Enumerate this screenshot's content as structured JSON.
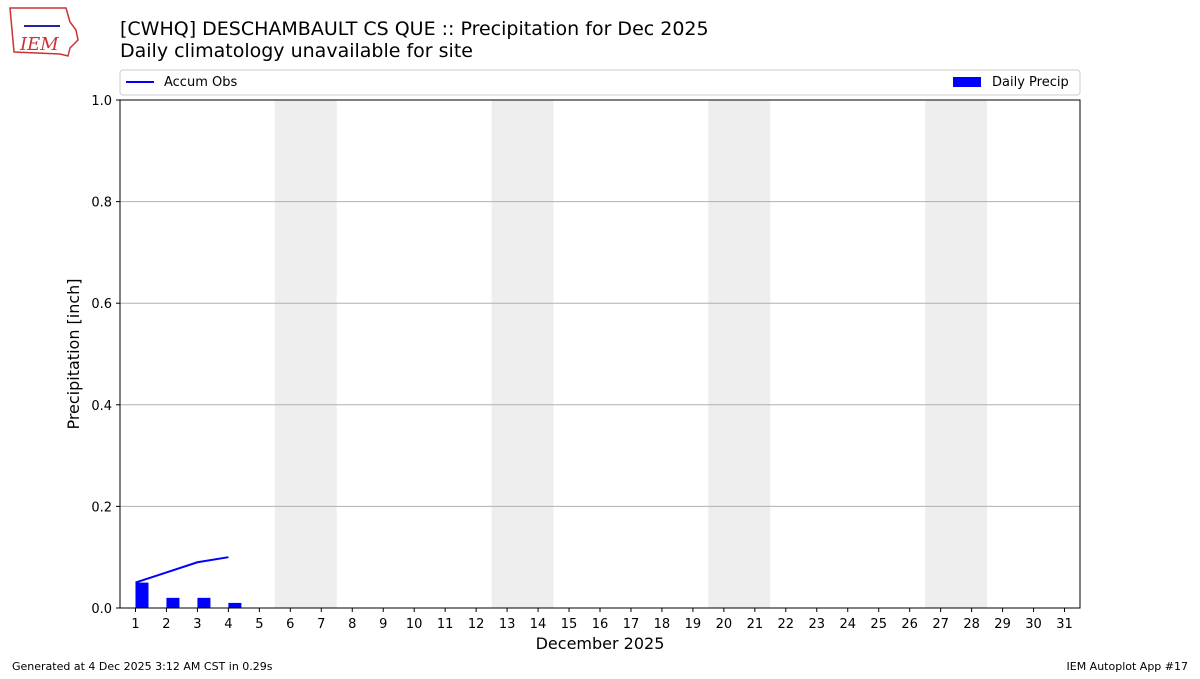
{
  "chart_data": {
    "type": "bar",
    "title": "[CWHQ] DESCHAMBAULT CS  QUE :: Precipitation for Dec 2025",
    "subtitle": "Daily climatology unavailable for site",
    "logo_text": "IEM",
    "xlabel": "December 2025",
    "ylabel": "Precipitation [inch]",
    "x": [
      1,
      2,
      3,
      4,
      5,
      6,
      7,
      8,
      9,
      10,
      11,
      12,
      13,
      14,
      15,
      16,
      17,
      18,
      19,
      20,
      21,
      22,
      23,
      24,
      25,
      26,
      27,
      28,
      29,
      30,
      31
    ],
    "xlim": [
      0.5,
      31.5
    ],
    "xticks": [
      1,
      2,
      3,
      4,
      5,
      6,
      7,
      8,
      9,
      10,
      11,
      12,
      13,
      14,
      15,
      16,
      17,
      18,
      19,
      20,
      21,
      22,
      23,
      24,
      25,
      26,
      27,
      28,
      29,
      30,
      31
    ],
    "ylim": [
      0,
      1
    ],
    "yticks": [
      {
        "value": 0,
        "label": "0.0"
      },
      {
        "value": 0.2,
        "label": "0.2"
      },
      {
        "value": 0.4,
        "label": "0.4"
      },
      {
        "value": 0.6,
        "label": "0.6"
      },
      {
        "value": 0.8,
        "label": "0.8"
      },
      {
        "value": 1,
        "label": "1.0"
      }
    ],
    "grid": true,
    "series": [
      {
        "name": "Accum Obs",
        "type": "line",
        "color": "#0000ff",
        "values": [
          0.05,
          0.07,
          0.09,
          0.1,
          null,
          null,
          null,
          null,
          null,
          null,
          null,
          null,
          null,
          null,
          null,
          null,
          null,
          null,
          null,
          null,
          null,
          null,
          null,
          null,
          null,
          null,
          null,
          null,
          null,
          null,
          null
        ]
      },
      {
        "name": "Daily Precip",
        "type": "bar",
        "color": "#0000ff",
        "values": [
          0.05,
          0.02,
          0.02,
          0.01,
          null,
          null,
          null,
          null,
          null,
          null,
          null,
          null,
          null,
          null,
          null,
          null,
          null,
          null,
          null,
          null,
          null,
          null,
          null,
          null,
          null,
          null,
          null,
          null,
          null,
          null,
          null
        ]
      }
    ],
    "footer_left": "Generated at 4 Dec 2025 3:12 AM CST in 0.29s",
    "footer_right": "IEM Autoplot App #17"
  }
}
